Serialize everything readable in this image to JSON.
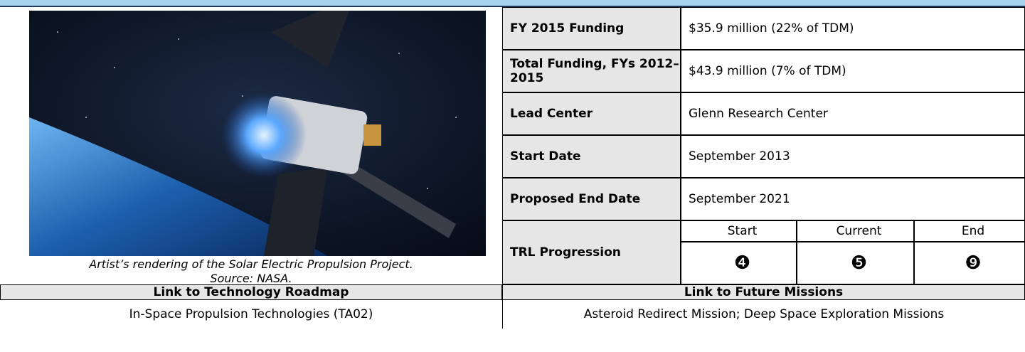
{
  "figure": {
    "caption": [
      "Artist’s rendering of the Solar Electric Propulsion Project.",
      "Source: NASA."
    ]
  },
  "table": {
    "rows": [
      [
        "FY 2015 Funding",
        "$35.9 million (22% of TDM)"
      ],
      [
        "Total Funding, FYs 2012–2015",
        "$43.9 million (7% of TDM)"
      ],
      [
        "Lead Center",
        "Glenn Research Center"
      ],
      [
        "Start Date",
        "September 2013"
      ],
      [
        "Proposed End Date",
        "September 2021"
      ]
    ],
    "trl": {
      "label": "TRL Progression",
      "stages": [
        "Start",
        "Current",
        "End"
      ],
      "levels": [
        "❹",
        "❺",
        "❾"
      ]
    }
  },
  "links": {
    "headers": [
      "Link to Technology Roadmap",
      "Link to Future Missions"
    ],
    "values": [
      "In-Space Propulsion Technologies (TA02)",
      "Asteroid Redirect Mission; Deep Space Exploration Missions"
    ]
  }
}
